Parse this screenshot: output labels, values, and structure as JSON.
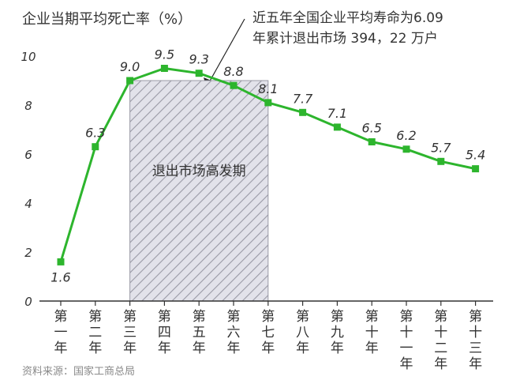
{
  "chart_data": {
    "type": "line",
    "title": "企业当期平均死亡率（%）",
    "annotation": {
      "line1": "近五年全国企业平均寿命为6.09",
      "line2": "年累计退出市场 394，22 万户"
    },
    "shaded_region_label": "退出市场高发期",
    "shaded_range": [
      "第三年",
      "第七年"
    ],
    "categories": [
      "第一年",
      "第二年",
      "第三年",
      "第四年",
      "第五年",
      "第六年",
      "第七年",
      "第八年",
      "第九年",
      "第十年",
      "第十一年",
      "第十二年",
      "第十三年"
    ],
    "category_chars": [
      [
        "第",
        "一",
        "年"
      ],
      [
        "第",
        "二",
        "年"
      ],
      [
        "第",
        "三",
        "年"
      ],
      [
        "第",
        "四",
        "年"
      ],
      [
        "第",
        "五",
        "年"
      ],
      [
        "第",
        "六",
        "年"
      ],
      [
        "第",
        "七",
        "年"
      ],
      [
        "第",
        "八",
        "年"
      ],
      [
        "第",
        "九",
        "年"
      ],
      [
        "第",
        "十",
        "年"
      ],
      [
        "第",
        "十",
        "一",
        "年"
      ],
      [
        "第",
        "十",
        "二",
        "年"
      ],
      [
        "第",
        "十",
        "三",
        "年"
      ]
    ],
    "values": [
      1.6,
      6.3,
      9.0,
      9.5,
      9.3,
      8.8,
      8.1,
      7.7,
      7.1,
      6.5,
      6.2,
      5.7,
      5.4
    ],
    "value_labels": [
      "1.6",
      "6.3",
      "9.0",
      "9.5",
      "9.3",
      "8.8",
      "8.1",
      "7.7",
      "7.1",
      "6.5",
      "6.2",
      "5.7",
      "5.4"
    ],
    "yticks": [
      "0",
      "2",
      "4",
      "6",
      "8",
      "10"
    ],
    "ylim": [
      0,
      10
    ],
    "grid": false,
    "source": "资料来源：国家工商总局",
    "colors": {
      "line": "#2db52d",
      "marker": "#2db52d",
      "shade_fill": "#e2e2ea",
      "shade_hatch": "#9a9aa6",
      "text": "#333333",
      "source": "#8a8a8a"
    }
  }
}
